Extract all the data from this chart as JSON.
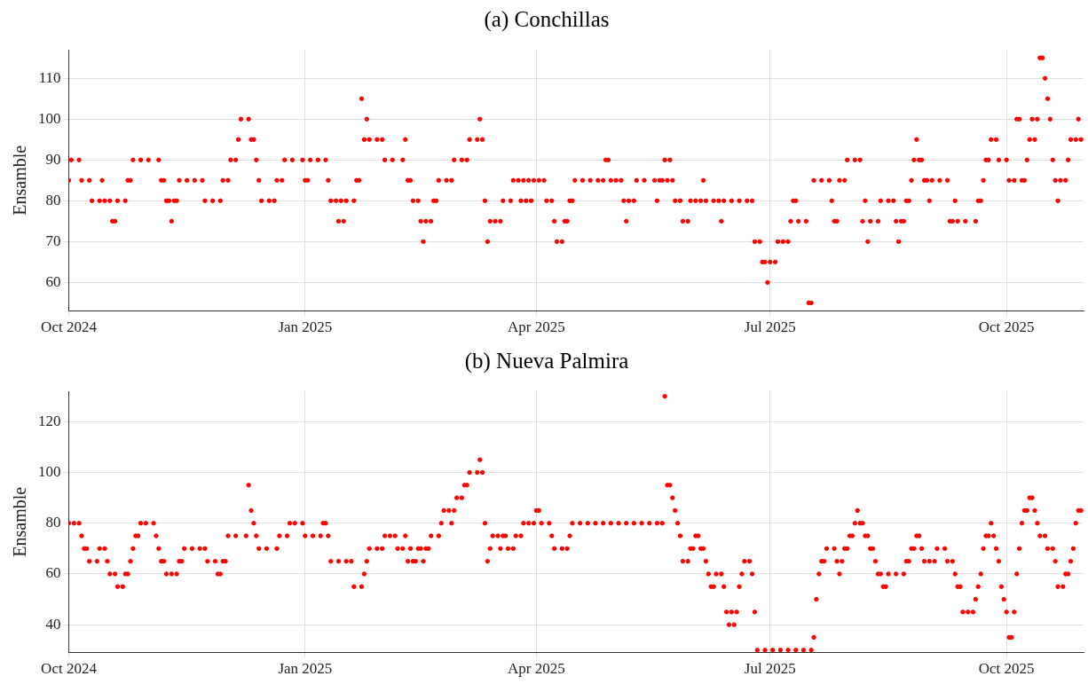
{
  "chart_data": [
    {
      "type": "scatter",
      "title": "(a) Conchillas",
      "ylabel": "Ensamble",
      "xlim": [
        "2024-10-01",
        "2025-10-31"
      ],
      "xticks": [
        {
          "value": "2024-10-01",
          "label": "Oct 2024"
        },
        {
          "value": "2025-01-01",
          "label": "Jan 2025"
        },
        {
          "value": "2025-04-01",
          "label": "Apr 2025"
        },
        {
          "value": "2025-07-01",
          "label": "Jul 2025"
        },
        {
          "value": "2025-10-01",
          "label": "Oct 2025"
        }
      ],
      "ylim": [
        53,
        117
      ],
      "yticks": [
        60,
        70,
        80,
        90,
        100,
        110
      ],
      "grid": true,
      "legend": false,
      "marker": "circle",
      "series": [
        {
          "color": "#ff0000",
          "x": [
            "2024-10-01",
            "2024-10-02",
            "2024-10-05",
            "2024-10-06",
            "2024-10-09",
            "2024-10-10",
            "2024-10-13",
            "2024-10-14",
            "2024-10-15",
            "2024-10-17",
            "2024-10-18",
            "2024-10-19",
            "2024-10-20",
            "2024-10-23",
            "2024-10-24",
            "2024-10-25",
            "2024-10-26",
            "2024-10-29",
            "2024-11-01",
            "2024-11-05",
            "2024-11-06",
            "2024-11-07",
            "2024-11-08",
            "2024-11-09",
            "2024-11-10",
            "2024-11-11",
            "2024-11-12",
            "2024-11-13",
            "2024-11-16",
            "2024-11-19",
            "2024-11-22",
            "2024-11-23",
            "2024-11-26",
            "2024-11-29",
            "2024-11-30",
            "2024-12-02",
            "2024-12-03",
            "2024-12-05",
            "2024-12-06",
            "2024-12-07",
            "2024-12-10",
            "2024-12-11",
            "2024-12-12",
            "2024-12-13",
            "2024-12-14",
            "2024-12-15",
            "2024-12-18",
            "2024-12-20",
            "2024-12-21",
            "2024-12-23",
            "2024-12-24",
            "2024-12-27",
            "2024-12-31",
            "2025-01-01",
            "2025-01-02",
            "2025-01-03",
            "2025-01-06",
            "2025-01-09",
            "2025-01-10",
            "2025-01-11",
            "2025-01-13",
            "2025-01-14",
            "2025-01-15",
            "2025-01-16",
            "2025-01-17",
            "2025-01-20",
            "2025-01-21",
            "2025-01-22",
            "2025-01-23",
            "2025-01-24",
            "2025-01-25",
            "2025-01-26",
            "2025-01-29",
            "2025-01-31",
            "2025-02-01",
            "2025-02-04",
            "2025-02-08",
            "2025-02-09",
            "2025-02-10",
            "2025-02-11",
            "2025-02-12",
            "2025-02-14",
            "2025-02-15",
            "2025-02-16",
            "2025-02-17",
            "2025-02-19",
            "2025-02-20",
            "2025-02-21",
            "2025-02-22",
            "2025-02-25",
            "2025-02-27",
            "2025-02-28",
            "2025-03-03",
            "2025-03-05",
            "2025-03-06",
            "2025-03-09",
            "2025-03-10",
            "2025-03-11",
            "2025-03-12",
            "2025-03-13",
            "2025-03-14",
            "2025-03-16",
            "2025-03-18",
            "2025-03-19",
            "2025-03-22",
            "2025-03-23",
            "2025-03-25",
            "2025-03-26",
            "2025-03-27",
            "2025-03-28",
            "2025-03-29",
            "2025-03-30",
            "2025-03-31",
            "2025-04-02",
            "2025-04-04",
            "2025-04-05",
            "2025-04-07",
            "2025-04-08",
            "2025-04-09",
            "2025-04-11",
            "2025-04-12",
            "2025-04-13",
            "2025-04-14",
            "2025-04-15",
            "2025-04-16",
            "2025-04-19",
            "2025-04-22",
            "2025-04-25",
            "2025-04-27",
            "2025-04-28",
            "2025-04-29",
            "2025-04-30",
            "2025-05-02",
            "2025-05-04",
            "2025-05-05",
            "2025-05-06",
            "2025-05-07",
            "2025-05-09",
            "2025-05-10",
            "2025-05-13",
            "2025-05-17",
            "2025-05-18",
            "2025-05-19",
            "2025-05-20",
            "2025-05-21",
            "2025-05-22",
            "2025-05-23",
            "2025-05-24",
            "2025-05-25",
            "2025-05-27",
            "2025-05-28",
            "2025-05-30",
            "2025-05-31",
            "2025-06-02",
            "2025-06-04",
            "2025-06-05",
            "2025-06-06",
            "2025-06-09",
            "2025-06-11",
            "2025-06-12",
            "2025-06-13",
            "2025-06-16",
            "2025-06-19",
            "2025-06-22",
            "2025-06-24",
            "2025-06-25",
            "2025-06-27",
            "2025-06-28",
            "2025-06-29",
            "2025-06-30",
            "2025-07-01",
            "2025-07-03",
            "2025-07-04",
            "2025-07-06",
            "2025-07-08",
            "2025-07-09",
            "2025-07-10",
            "2025-07-11",
            "2025-07-12",
            "2025-07-15",
            "2025-07-16",
            "2025-07-17",
            "2025-07-18",
            "2025-07-21",
            "2025-07-24",
            "2025-07-25",
            "2025-07-26",
            "2025-07-27",
            "2025-07-28",
            "2025-07-30",
            "2025-07-31",
            "2025-08-03",
            "2025-08-05",
            "2025-08-06",
            "2025-08-07",
            "2025-08-08",
            "2025-08-09",
            "2025-08-12",
            "2025-08-13",
            "2025-08-16",
            "2025-08-18",
            "2025-08-19",
            "2025-08-20",
            "2025-08-21",
            "2025-08-22",
            "2025-08-23",
            "2025-08-24",
            "2025-08-25",
            "2025-08-26",
            "2025-08-27",
            "2025-08-28",
            "2025-08-29",
            "2025-08-30",
            "2025-08-31",
            "2025-09-01",
            "2025-09-02",
            "2025-09-05",
            "2025-09-08",
            "2025-09-09",
            "2025-09-10",
            "2025-09-11",
            "2025-09-12",
            "2025-09-15",
            "2025-09-19",
            "2025-09-20",
            "2025-09-21",
            "2025-09-22",
            "2025-09-23",
            "2025-09-24",
            "2025-09-25",
            "2025-09-27",
            "2025-09-28",
            "2025-10-01",
            "2025-10-02",
            "2025-10-04",
            "2025-10-05",
            "2025-10-06",
            "2025-10-07",
            "2025-10-08",
            "2025-10-09",
            "2025-10-10",
            "2025-10-11",
            "2025-10-12",
            "2025-10-13",
            "2025-10-14",
            "2025-10-15",
            "2025-10-16",
            "2025-10-17",
            "2025-10-18",
            "2025-10-19",
            "2025-10-20",
            "2025-10-21",
            "2025-10-22",
            "2025-10-24",
            "2025-10-25",
            "2025-10-26",
            "2025-10-28",
            "2025-10-29",
            "2025-10-30"
          ],
          "values": [
            85,
            90,
            90,
            85,
            85,
            80,
            80,
            85,
            80,
            80,
            75,
            75,
            80,
            80,
            85,
            85,
            90,
            90,
            90,
            90,
            85,
            85,
            80,
            80,
            75,
            80,
            80,
            85,
            85,
            85,
            85,
            80,
            80,
            80,
            85,
            85,
            90,
            90,
            95,
            100,
            100,
            95,
            95,
            90,
            85,
            80,
            80,
            80,
            85,
            85,
            90,
            90,
            90,
            85,
            85,
            90,
            90,
            90,
            85,
            80,
            80,
            75,
            80,
            75,
            80,
            80,
            85,
            85,
            105,
            95,
            100,
            95,
            95,
            95,
            90,
            90,
            90,
            95,
            85,
            85,
            80,
            80,
            75,
            70,
            75,
            75,
            80,
            80,
            85,
            85,
            85,
            90,
            90,
            90,
            95,
            95,
            100,
            95,
            80,
            70,
            75,
            75,
            75,
            80,
            80,
            85,
            85,
            80,
            85,
            80,
            85,
            80,
            85,
            85,
            85,
            80,
            80,
            75,
            70,
            70,
            75,
            75,
            80,
            80,
            85,
            85,
            85,
            85,
            85,
            90,
            90,
            85,
            85,
            85,
            80,
            75,
            80,
            80,
            85,
            85,
            85,
            80,
            85,
            85,
            90,
            85,
            90,
            85,
            80,
            80,
            75,
            75,
            80,
            80,
            80,
            85,
            80,
            80,
            80,
            75,
            80,
            80,
            80,
            80,
            80,
            70,
            70,
            65,
            65,
            60,
            65,
            65,
            70,
            70,
            70,
            75,
            80,
            80,
            75,
            75,
            55,
            55,
            85,
            85,
            85,
            80,
            75,
            75,
            85,
            85,
            90,
            90,
            90,
            75,
            80,
            70,
            75,
            75,
            80,
            80,
            80,
            75,
            70,
            75,
            75,
            80,
            80,
            85,
            90,
            95,
            90,
            90,
            85,
            85,
            80,
            85,
            85,
            85,
            75,
            75,
            80,
            75,
            75,
            75,
            80,
            80,
            85,
            90,
            90,
            95,
            95,
            90,
            90,
            85,
            85,
            100,
            100,
            85,
            85,
            90,
            95,
            100,
            95,
            100,
            115,
            115,
            110,
            105,
            100,
            90,
            85,
            80,
            85,
            85,
            90,
            95,
            95,
            100,
            95
          ]
        }
      ]
    },
    {
      "type": "scatter",
      "title": "(b) Nueva Palmira",
      "ylabel": "Ensamble",
      "xlim": [
        "2024-10-01",
        "2025-10-31"
      ],
      "xticks": [
        {
          "value": "2024-10-01",
          "label": "Oct 2024"
        },
        {
          "value": "2025-01-01",
          "label": "Jan 2025"
        },
        {
          "value": "2025-04-01",
          "label": "Apr 2025"
        },
        {
          "value": "2025-07-01",
          "label": "Jul 2025"
        },
        {
          "value": "2025-10-01",
          "label": "Oct 2025"
        }
      ],
      "ylim": [
        29,
        132
      ],
      "yticks": [
        40,
        60,
        80,
        100,
        120
      ],
      "grid": true,
      "legend": false,
      "marker": "circle",
      "series": [
        {
          "color": "#ff0000",
          "x": [
            "2024-10-01",
            "2024-10-03",
            "2024-10-05",
            "2024-10-06",
            "2024-10-07",
            "2024-10-08",
            "2024-10-09",
            "2024-10-12",
            "2024-10-13",
            "2024-10-15",
            "2024-10-16",
            "2024-10-17",
            "2024-10-19",
            "2024-10-20",
            "2024-10-22",
            "2024-10-23",
            "2024-10-24",
            "2024-10-25",
            "2024-10-26",
            "2024-10-27",
            "2024-10-28",
            "2024-10-29",
            "2024-10-31",
            "2024-11-03",
            "2024-11-04",
            "2024-11-05",
            "2024-11-06",
            "2024-11-07",
            "2024-11-08",
            "2024-11-10",
            "2024-11-12",
            "2024-11-13",
            "2024-11-14",
            "2024-11-15",
            "2024-11-18",
            "2024-11-21",
            "2024-11-23",
            "2024-11-24",
            "2024-11-27",
            "2024-11-28",
            "2024-11-29",
            "2024-11-30",
            "2024-12-01",
            "2024-12-02",
            "2024-12-05",
            "2024-12-09",
            "2024-12-10",
            "2024-12-11",
            "2024-12-12",
            "2024-12-13",
            "2024-12-14",
            "2024-12-17",
            "2024-12-21",
            "2024-12-22",
            "2024-12-25",
            "2024-12-26",
            "2024-12-28",
            "2024-12-31",
            "2025-01-01",
            "2025-01-04",
            "2025-01-07",
            "2025-01-08",
            "2025-01-09",
            "2025-01-10",
            "2025-01-11",
            "2025-01-14",
            "2025-01-17",
            "2025-01-19",
            "2025-01-20",
            "2025-01-23",
            "2025-01-24",
            "2025-01-25",
            "2025-01-26",
            "2025-01-29",
            "2025-01-31",
            "2025-02-01",
            "2025-02-03",
            "2025-02-05",
            "2025-02-06",
            "2025-02-08",
            "2025-02-09",
            "2025-02-10",
            "2025-02-11",
            "2025-02-12",
            "2025-02-13",
            "2025-02-14",
            "2025-02-15",
            "2025-02-16",
            "2025-02-17",
            "2025-02-18",
            "2025-02-19",
            "2025-02-22",
            "2025-02-23",
            "2025-02-24",
            "2025-02-26",
            "2025-02-27",
            "2025-02-28",
            "2025-03-01",
            "2025-03-03",
            "2025-03-04",
            "2025-03-05",
            "2025-03-06",
            "2025-03-09",
            "2025-03-10",
            "2025-03-11",
            "2025-03-12",
            "2025-03-13",
            "2025-03-14",
            "2025-03-15",
            "2025-03-17",
            "2025-03-18",
            "2025-03-19",
            "2025-03-20",
            "2025-03-21",
            "2025-03-23",
            "2025-03-24",
            "2025-03-26",
            "2025-03-27",
            "2025-03-29",
            "2025-03-31",
            "2025-04-01",
            "2025-04-02",
            "2025-04-03",
            "2025-04-06",
            "2025-04-07",
            "2025-04-08",
            "2025-04-11",
            "2025-04-13",
            "2025-04-14",
            "2025-04-15",
            "2025-04-18",
            "2025-04-21",
            "2025-04-24",
            "2025-04-27",
            "2025-04-30",
            "2025-05-03",
            "2025-05-06",
            "2025-05-09",
            "2025-05-12",
            "2025-05-15",
            "2025-05-18",
            "2025-05-20",
            "2025-05-21",
            "2025-05-22",
            "2025-05-23",
            "2025-05-24",
            "2025-05-25",
            "2025-05-26",
            "2025-05-27",
            "2025-05-28",
            "2025-05-30",
            "2025-05-31",
            "2025-06-01",
            "2025-06-02",
            "2025-06-03",
            "2025-06-04",
            "2025-06-05",
            "2025-06-06",
            "2025-06-07",
            "2025-06-08",
            "2025-06-09",
            "2025-06-10",
            "2025-06-12",
            "2025-06-13",
            "2025-06-14",
            "2025-06-15",
            "2025-06-16",
            "2025-06-17",
            "2025-06-18",
            "2025-06-19",
            "2025-06-20",
            "2025-06-21",
            "2025-06-23",
            "2025-06-24",
            "2025-06-25",
            "2025-06-26",
            "2025-06-29",
            "2025-07-02",
            "2025-07-05",
            "2025-07-08",
            "2025-07-11",
            "2025-07-14",
            "2025-07-17",
            "2025-07-18",
            "2025-07-19",
            "2025-07-20",
            "2025-07-21",
            "2025-07-22",
            "2025-07-23",
            "2025-07-26",
            "2025-07-27",
            "2025-07-28",
            "2025-07-29",
            "2025-07-30",
            "2025-07-31",
            "2025-08-01",
            "2025-08-02",
            "2025-08-03",
            "2025-08-04",
            "2025-08-05",
            "2025-08-06",
            "2025-08-07",
            "2025-08-08",
            "2025-08-09",
            "2025-08-10",
            "2025-08-11",
            "2025-08-12",
            "2025-08-13",
            "2025-08-14",
            "2025-08-15",
            "2025-08-16",
            "2025-08-19",
            "2025-08-22",
            "2025-08-23",
            "2025-08-24",
            "2025-08-25",
            "2025-08-26",
            "2025-08-27",
            "2025-08-28",
            "2025-08-29",
            "2025-08-30",
            "2025-09-01",
            "2025-09-03",
            "2025-09-04",
            "2025-09-07",
            "2025-09-08",
            "2025-09-10",
            "2025-09-11",
            "2025-09-12",
            "2025-09-13",
            "2025-09-14",
            "2025-09-16",
            "2025-09-18",
            "2025-09-19",
            "2025-09-20",
            "2025-09-21",
            "2025-09-22",
            "2025-09-23",
            "2025-09-24",
            "2025-09-25",
            "2025-09-26",
            "2025-09-27",
            "2025-09-28",
            "2025-09-29",
            "2025-09-30",
            "2025-10-01",
            "2025-10-02",
            "2025-10-03",
            "2025-10-04",
            "2025-10-05",
            "2025-10-06",
            "2025-10-07",
            "2025-10-08",
            "2025-10-09",
            "2025-10-10",
            "2025-10-11",
            "2025-10-12",
            "2025-10-13",
            "2025-10-14",
            "2025-10-16",
            "2025-10-17",
            "2025-10-19",
            "2025-10-20",
            "2025-10-21",
            "2025-10-23",
            "2025-10-24",
            "2025-10-25",
            "2025-10-26",
            "2025-10-27",
            "2025-10-28",
            "2025-10-29",
            "2025-10-30"
          ],
          "values": [
            80,
            80,
            80,
            75,
            70,
            70,
            65,
            65,
            70,
            70,
            65,
            60,
            60,
            55,
            55,
            60,
            60,
            65,
            70,
            75,
            75,
            80,
            80,
            80,
            75,
            70,
            65,
            65,
            60,
            60,
            60,
            65,
            65,
            70,
            70,
            70,
            70,
            65,
            65,
            60,
            60,
            65,
            65,
            75,
            75,
            75,
            95,
            85,
            80,
            75,
            70,
            70,
            70,
            75,
            75,
            80,
            80,
            80,
            75,
            75,
            75,
            80,
            80,
            75,
            65,
            65,
            65,
            65,
            55,
            55,
            60,
            65,
            70,
            70,
            70,
            75,
            75,
            75,
            70,
            70,
            75,
            65,
            70,
            65,
            65,
            70,
            70,
            65,
            70,
            70,
            75,
            75,
            80,
            85,
            85,
            80,
            85,
            90,
            90,
            95,
            95,
            100,
            100,
            105,
            100,
            80,
            65,
            70,
            75,
            75,
            70,
            75,
            75,
            70,
            70,
            75,
            75,
            80,
            80,
            80,
            85,
            85,
            80,
            80,
            75,
            70,
            70,
            70,
            75,
            80,
            80,
            80,
            80,
            80,
            80,
            80,
            80,
            80,
            80,
            80,
            80,
            80,
            130,
            95,
            95,
            90,
            85,
            80,
            75,
            65,
            65,
            70,
            70,
            75,
            75,
            70,
            70,
            65,
            60,
            55,
            55,
            60,
            60,
            55,
            45,
            40,
            45,
            40,
            45,
            55,
            60,
            65,
            65,
            60,
            45,
            30,
            30,
            30,
            30,
            30,
            30,
            30,
            30,
            35,
            50,
            60,
            65,
            65,
            70,
            70,
            65,
            60,
            65,
            70,
            70,
            75,
            75,
            80,
            85,
            80,
            80,
            75,
            75,
            70,
            70,
            65,
            60,
            60,
            55,
            55,
            60,
            60,
            60,
            65,
            65,
            70,
            70,
            75,
            75,
            70,
            65,
            65,
            65,
            70,
            70,
            65,
            65,
            60,
            55,
            55,
            45,
            45,
            45,
            50,
            55,
            60,
            70,
            75,
            75,
            80,
            75,
            70,
            65,
            55,
            50,
            45,
            35,
            35,
            45,
            60,
            70,
            80,
            85,
            85,
            90,
            90,
            85,
            80,
            75,
            75,
            70,
            70,
            65,
            55,
            55,
            60,
            60,
            65,
            70,
            80,
            85,
            85
          ]
        }
      ]
    }
  ]
}
